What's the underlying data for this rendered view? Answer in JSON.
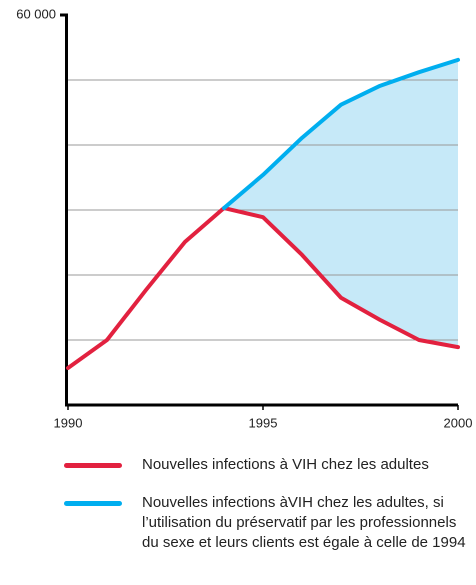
{
  "chart_data": {
    "type": "line",
    "x": [
      1990,
      1991,
      1992,
      1993,
      1994,
      1995,
      1996,
      1997,
      1998,
      1999,
      2000
    ],
    "series": [
      {
        "name": "Nouvelles infections à VIH chez les adultes",
        "color": "#e2213f",
        "values": [
          5700,
          10000,
          17700,
          25100,
          30300,
          28900,
          23100,
          16500,
          13100,
          10000,
          8900
        ]
      },
      {
        "name": "Nouvelles infections àVIH chez les adultes, si l’utilisation du préservatif par les professionnels du sexe et leurs clients est égale à celle de 1994",
        "color": "#00aeef",
        "values": [
          null,
          null,
          null,
          null,
          30300,
          35400,
          41100,
          46200,
          49100,
          51200,
          53100
        ]
      }
    ],
    "fill_between_color": "#c6e9f8",
    "xlim": [
      1990,
      2000
    ],
    "xticks": [
      1990,
      1995,
      2000
    ],
    "ylim": [
      0,
      60000
    ],
    "yticks": [
      {
        "value": 10000,
        "label": null
      },
      {
        "value": 20000,
        "label": null
      },
      {
        "value": 30000,
        "label": null
      },
      {
        "value": 40000,
        "label": null
      },
      {
        "value": 50000,
        "label": null
      },
      {
        "value": 60000,
        "label": "60 000"
      }
    ],
    "grid": true
  }
}
